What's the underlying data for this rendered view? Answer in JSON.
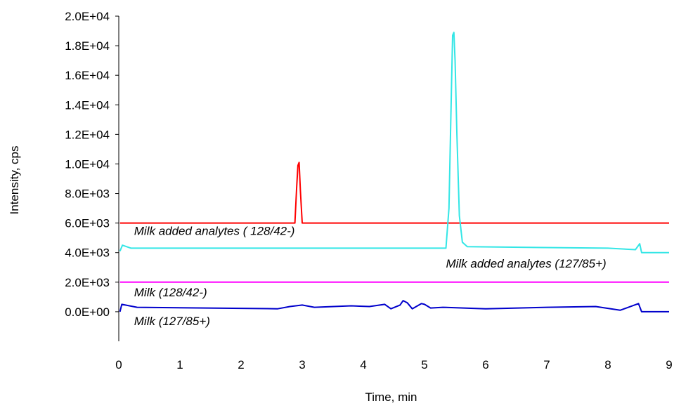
{
  "chart_data": {
    "type": "line",
    "title": "",
    "xlabel": "Time, min",
    "ylabel": "Intensity, cps",
    "xlim": [
      0,
      9
    ],
    "ylim": [
      -2000,
      20000
    ],
    "x_ticks": [
      0,
      1,
      2,
      3,
      4,
      5,
      6,
      7,
      8,
      9
    ],
    "x_tick_labels": [
      "0",
      "1",
      "2",
      "3",
      "4",
      "5",
      "6",
      "7",
      "8",
      "9"
    ],
    "y_ticks": [
      0,
      2000,
      4000,
      6000,
      8000,
      10000,
      12000,
      14000,
      16000,
      18000,
      20000
    ],
    "y_tick_labels": [
      "0.0E+00",
      "2.0E+03",
      "4.0E+03",
      "6.0E+03",
      "8.0E+03",
      "1.0E+04",
      "1.2E+04",
      "1.4E+04",
      "1.6E+04",
      "1.8E+04",
      "2.0E+04"
    ],
    "grid": false,
    "legend": "none",
    "series": [
      {
        "name": "Milk added analytes ( 128/42-)",
        "color": "#ff0000",
        "x": [
          0.02,
          2.88,
          2.91,
          2.93,
          2.95,
          2.97,
          3.0,
          9.0
        ],
        "y": [
          6000,
          6000,
          8500,
          9900,
          10100,
          8200,
          6000,
          6000
        ]
      },
      {
        "name": "Milk added analytes (127/85+)",
        "color": "#33e6e6",
        "x": [
          0.02,
          0.06,
          0.2,
          5.35,
          5.4,
          5.44,
          5.46,
          5.48,
          5.5,
          5.53,
          5.57,
          5.62,
          5.7,
          8.0,
          8.45,
          8.52,
          8.55,
          9.0
        ],
        "y": [
          4100,
          4500,
          4300,
          4300,
          7000,
          15000,
          18700,
          18900,
          17000,
          12000,
          6500,
          4700,
          4400,
          4300,
          4200,
          4600,
          4000,
          4000
        ]
      },
      {
        "name": "Milk (128/42-)",
        "color": "#ff00ff",
        "x": [
          0.02,
          9.0
        ],
        "y": [
          2000,
          2000
        ]
      },
      {
        "name": "Milk (127/85+)",
        "color": "#0000cc",
        "x": [
          0.02,
          0.05,
          0.3,
          2.6,
          2.8,
          3.0,
          3.2,
          3.8,
          4.1,
          4.35,
          4.45,
          4.6,
          4.65,
          4.72,
          4.8,
          4.95,
          5.0,
          5.1,
          5.3,
          6.0,
          7.0,
          7.8,
          8.2,
          8.5,
          8.55,
          9.0
        ],
        "y": [
          0,
          500,
          300,
          200,
          350,
          450,
          300,
          400,
          350,
          500,
          200,
          450,
          750,
          600,
          200,
          550,
          500,
          250,
          300,
          200,
          300,
          350,
          100,
          550,
          0,
          0
        ]
      }
    ],
    "annotations": [
      {
        "text": "Milk added analytes ( 128/42-)",
        "x": 0.25,
        "y": 5200
      },
      {
        "text": "Milk added analytes (127/85+)",
        "x": 5.35,
        "y": 3000
      },
      {
        "text": "Milk (128/42-)",
        "x": 0.25,
        "y": 1050
      },
      {
        "text": "Milk (127/85+)",
        "x": 0.25,
        "y": -900
      }
    ]
  }
}
